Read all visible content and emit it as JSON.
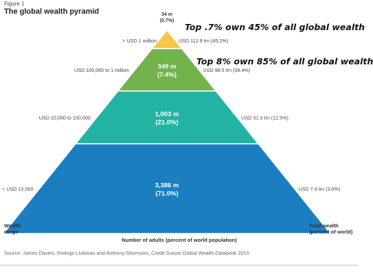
{
  "header": {
    "figure_label": "Figure 1",
    "title": "The global wealth pyramid"
  },
  "annotations": {
    "top_07": "Top .7% own 45% of all global wealth",
    "top_8": "Top 8% own 85% of all global wealth"
  },
  "colors": {
    "tier_top": "#f6c644",
    "tier_upper": "#73b34e",
    "tier_middle": "#22b3a3",
    "tier_base": "#1a7ec1"
  },
  "chart_data": {
    "type": "pyramid",
    "title": "The global wealth pyramid",
    "xlabel": "Number of adults (percent of world population)",
    "left_axis_label": "Wealth range",
    "right_axis_label": "Total wealth (percent of world)",
    "tiers": [
      {
        "wealth_range": "> USD 1 million",
        "adults": "34 m",
        "adults_pct": "(0.7%)",
        "adults_millions": 34,
        "population_share": 0.7,
        "total_wealth": "USD 112.9 trn (45.2%)",
        "wealth_trn": 112.9,
        "wealth_share": 45.2
      },
      {
        "wealth_range": "USD 100,000 to 1 million",
        "adults": "349 m",
        "adults_pct": "(7.4%)",
        "adults_millions": 349,
        "population_share": 7.4,
        "total_wealth": "USD 98.5 trn (39.4%)",
        "wealth_trn": 98.5,
        "wealth_share": 39.4
      },
      {
        "wealth_range": "USD 10,000 to 100,000",
        "adults": "1,003 m",
        "adults_pct": "(21.0%)",
        "adults_millions": 1003,
        "population_share": 21.0,
        "total_wealth": "USD 31.3 trn (12.5%)",
        "wealth_trn": 31.3,
        "wealth_share": 12.5
      },
      {
        "wealth_range": "< USD 10,000",
        "adults": "3,386 m",
        "adults_pct": "(71.0%)",
        "adults_millions": 3386,
        "population_share": 71.0,
        "total_wealth": "USD 7.4 trn (3.0%)",
        "wealth_trn": 7.4,
        "wealth_share": 3.0
      }
    ]
  },
  "footer": {
    "source": "Source: James Davies, Rodrigo Lluberas and Anthony Shorrocks, Credit Suisse Global Wealth Databook 2015"
  }
}
